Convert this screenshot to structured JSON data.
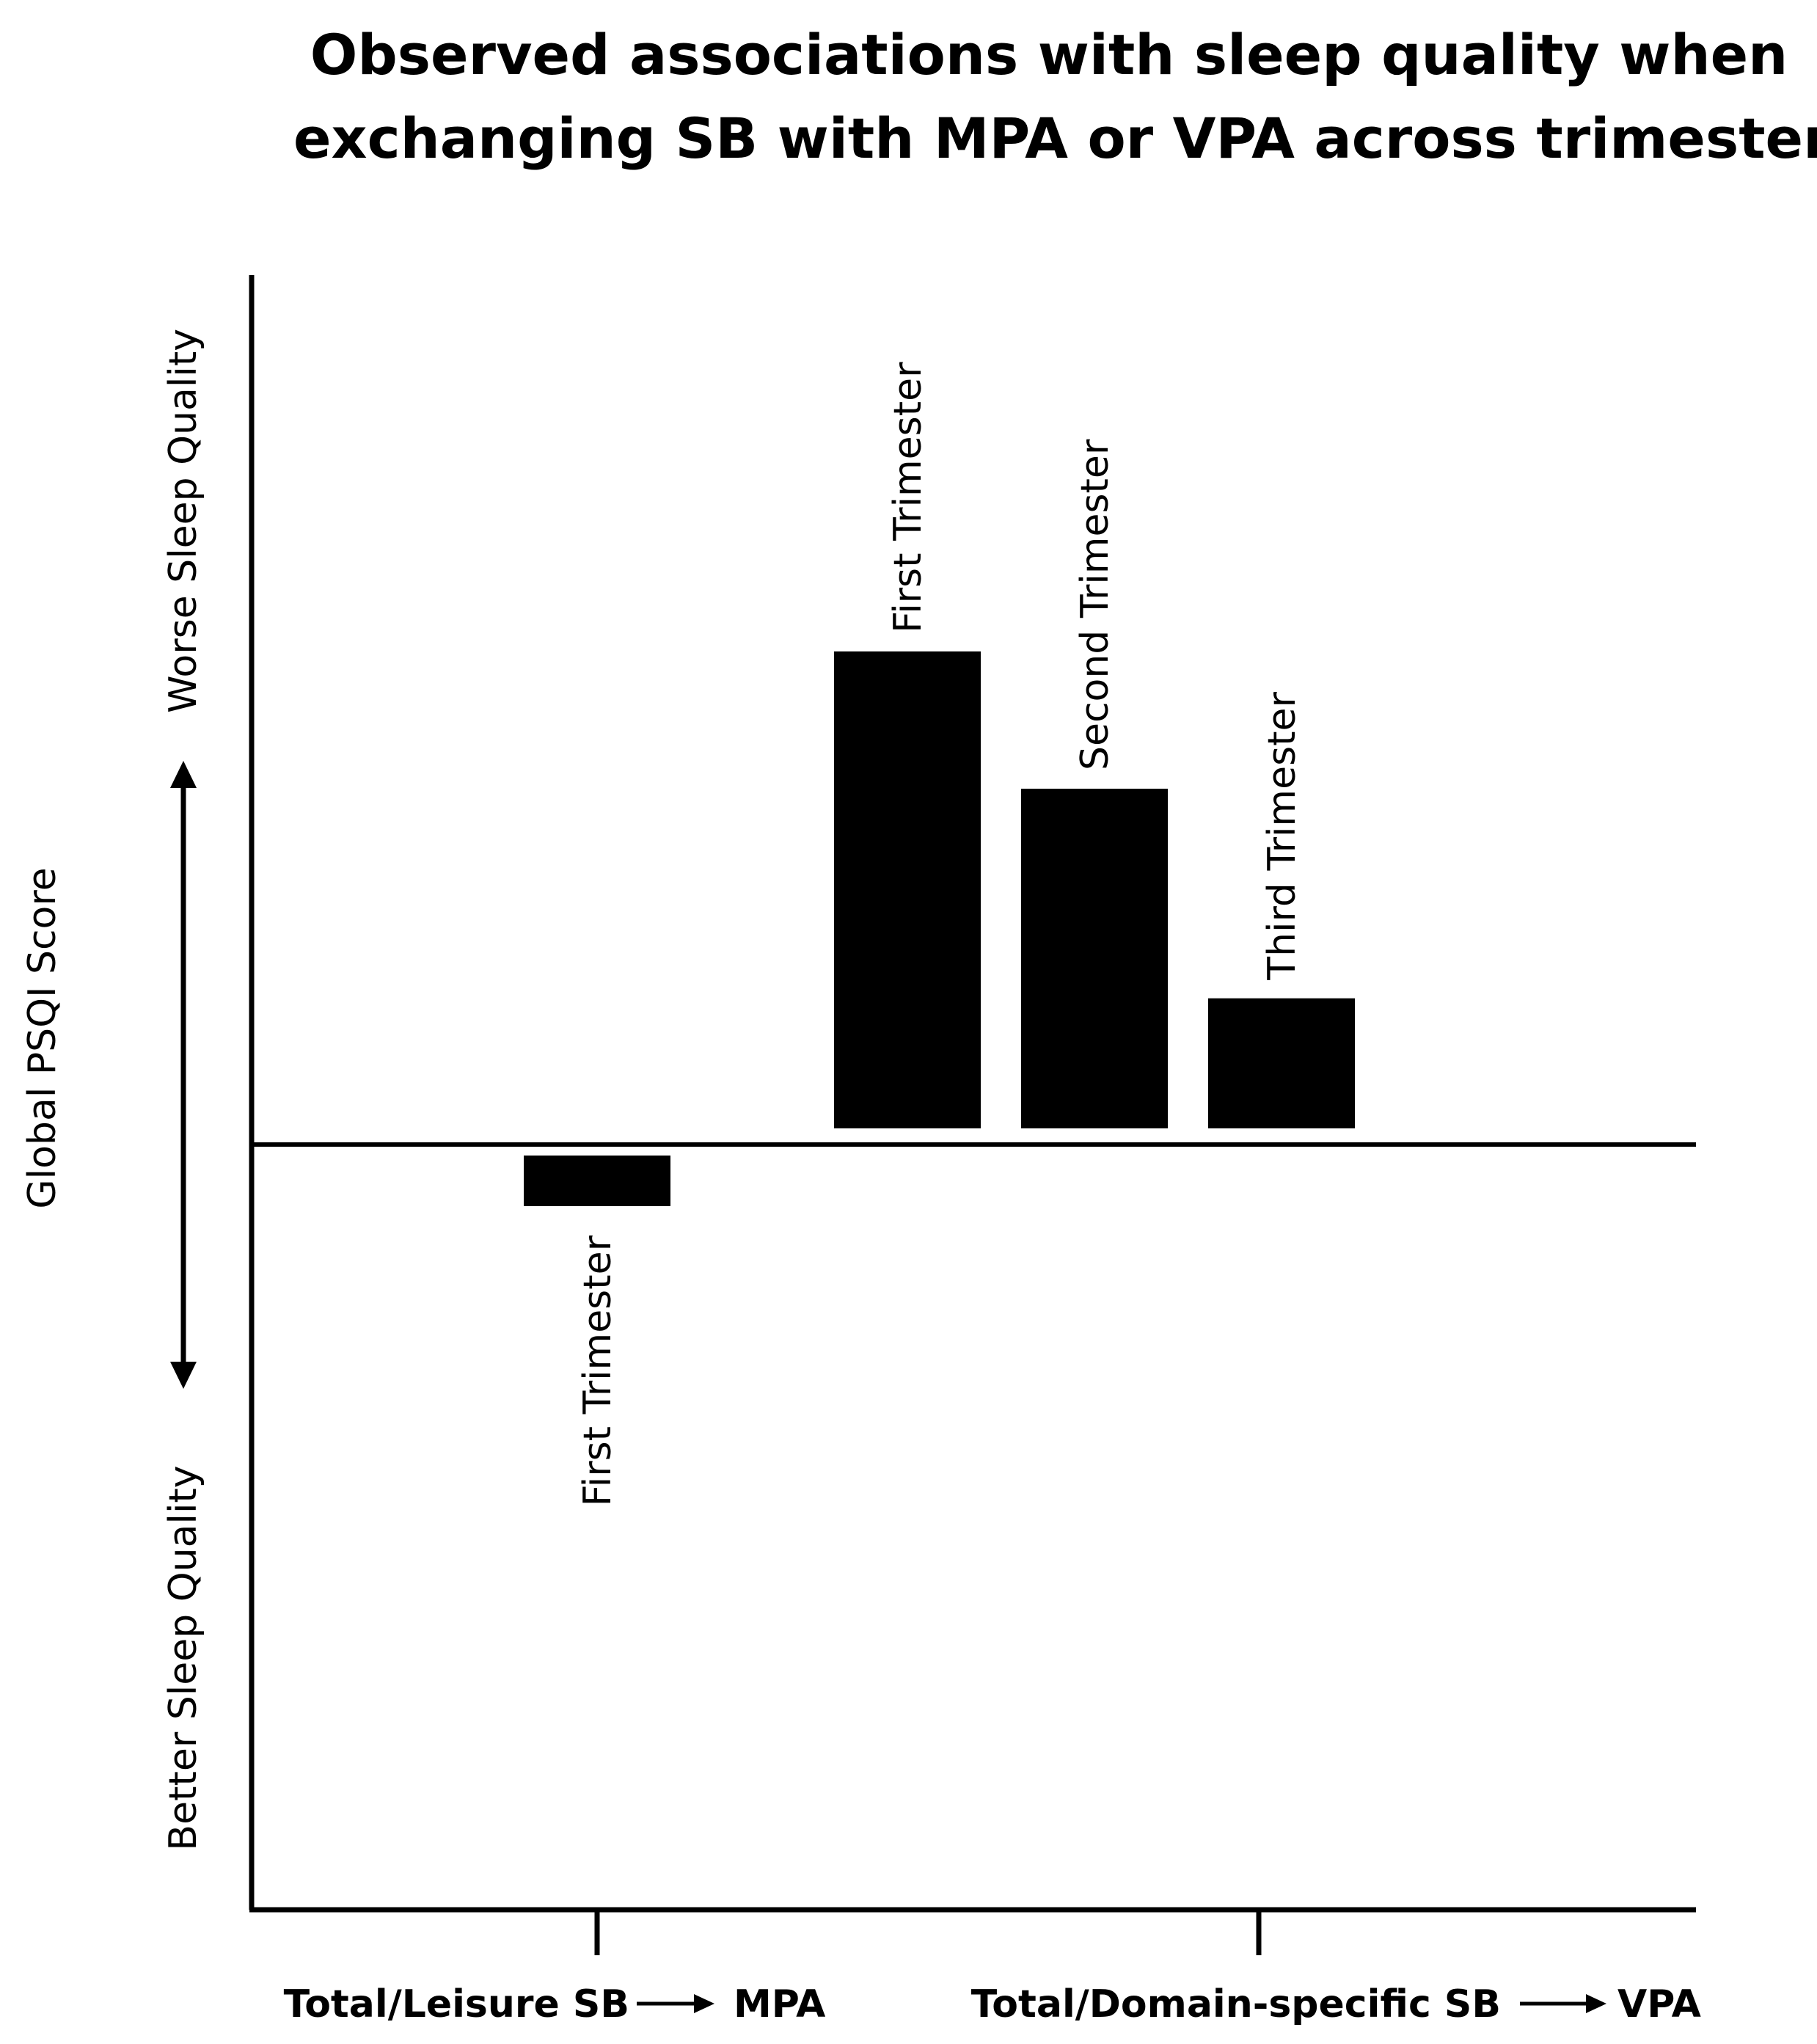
{
  "chart_data": {
    "type": "bar",
    "title_lines": [
      "Observed associations with sleep quality when",
      "exchanging SB with MPA or VPA across trimesters"
    ],
    "ylabel": "Global PSQI Score",
    "y_direction_labels": {
      "up": "Worse Sleep Quality",
      "down": "Better Sleep Quality"
    },
    "categories": [
      {
        "label_left": "Total/Leisure SB",
        "label_right": "MPA"
      },
      {
        "label_left": "Total/Domain-specific  SB",
        "label_right": "VPA"
      }
    ],
    "bars": [
      {
        "group": 0,
        "label": "First Trimester",
        "value": -0.07
      },
      {
        "group": 1,
        "label": "First Trimester",
        "value": 0.66
      },
      {
        "group": 1,
        "label": "Second Trimester",
        "value": 0.47
      },
      {
        "group": 1,
        "label": "Third Trimester",
        "value": 0.18
      }
    ],
    "ylim": [
      -1.05,
      1.2
    ],
    "grid": false,
    "legend": "none",
    "bar_color": "#000000"
  }
}
